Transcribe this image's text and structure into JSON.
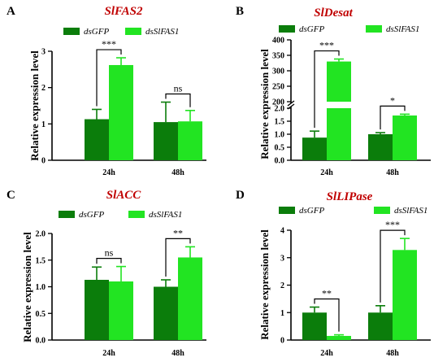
{
  "colors": {
    "dsGFP": "#0b7d0b",
    "dsSlFAS1": "#22e422"
  },
  "chart_data": [
    {
      "panel": "A",
      "title": "SlFAS2",
      "type": "bar",
      "categories": [
        "24h",
        "48h"
      ],
      "series": [
        {
          "name": "dsGFP",
          "values": [
            1.13,
            1.05
          ],
          "errors": [
            0.27,
            0.55
          ]
        },
        {
          "name": "dsSlFAS1",
          "values": [
            2.62,
            1.07
          ],
          "errors": [
            0.2,
            0.3
          ]
        }
      ],
      "ylabel": "Relative expression level",
      "ylim": [
        0,
        3
      ],
      "yticks": [
        0,
        1,
        2,
        3
      ],
      "yticklabels": [
        "0",
        "1",
        "2",
        "3"
      ],
      "significance": [
        "***",
        "ns"
      ],
      "legend": "top"
    },
    {
      "panel": "B",
      "title": "SlDesat",
      "type": "bar",
      "categories": [
        "24h",
        "48h"
      ],
      "series": [
        {
          "name": "dsGFP",
          "values": [
            0.87,
            1.0
          ],
          "errors": [
            0.25,
            0.06
          ]
        },
        {
          "name": "dsSlFAS1",
          "values": [
            330,
            1.72
          ],
          "errors": [
            8,
            0.05
          ]
        }
      ],
      "ylabel": "Relative expression level",
      "broken_axis": {
        "lower": [
          0,
          2.0
        ],
        "upper": [
          200,
          400
        ]
      },
      "yticks": [
        0,
        0.5,
        1.0,
        1.5,
        2.0,
        200,
        250,
        300,
        350,
        400
      ],
      "yticklabels": [
        "0.0",
        "0.5",
        "1.0",
        "1.5",
        "2.0",
        "200",
        "250",
        "300",
        "350",
        "400"
      ],
      "significance": [
        "***",
        "*"
      ],
      "legend": "top"
    },
    {
      "panel": "C",
      "title": "SlACC",
      "type": "bar",
      "categories": [
        "24h",
        "48h"
      ],
      "series": [
        {
          "name": "dsGFP",
          "values": [
            1.13,
            1.0
          ],
          "errors": [
            0.24,
            0.13
          ]
        },
        {
          "name": "dsSlFAS1",
          "values": [
            1.1,
            1.55
          ],
          "errors": [
            0.28,
            0.2
          ]
        }
      ],
      "ylabel": "Relative expression level",
      "ylim": [
        0,
        2.0
      ],
      "yticks": [
        0,
        0.5,
        1.0,
        1.5,
        2.0
      ],
      "yticklabels": [
        "0.0",
        "0.5",
        "1.0",
        "1.5",
        "2.0"
      ],
      "significance": [
        "ns",
        "**"
      ],
      "legend": "top"
    },
    {
      "panel": "D",
      "title": "SlLIPase",
      "type": "bar",
      "categories": [
        "24h",
        "48h"
      ],
      "series": [
        {
          "name": "dsGFP",
          "values": [
            1.0,
            1.0
          ],
          "errors": [
            0.2,
            0.25
          ]
        },
        {
          "name": "dsSlFAS1",
          "values": [
            0.15,
            3.28
          ],
          "errors": [
            0.04,
            0.42
          ]
        }
      ],
      "ylabel": "Relative expression level",
      "ylim": [
        0,
        4
      ],
      "yticks": [
        0,
        1,
        2,
        3,
        4
      ],
      "yticklabels": [
        "0",
        "1",
        "2",
        "3",
        "4"
      ],
      "significance": [
        "**",
        "***"
      ],
      "legend": "top"
    }
  ]
}
